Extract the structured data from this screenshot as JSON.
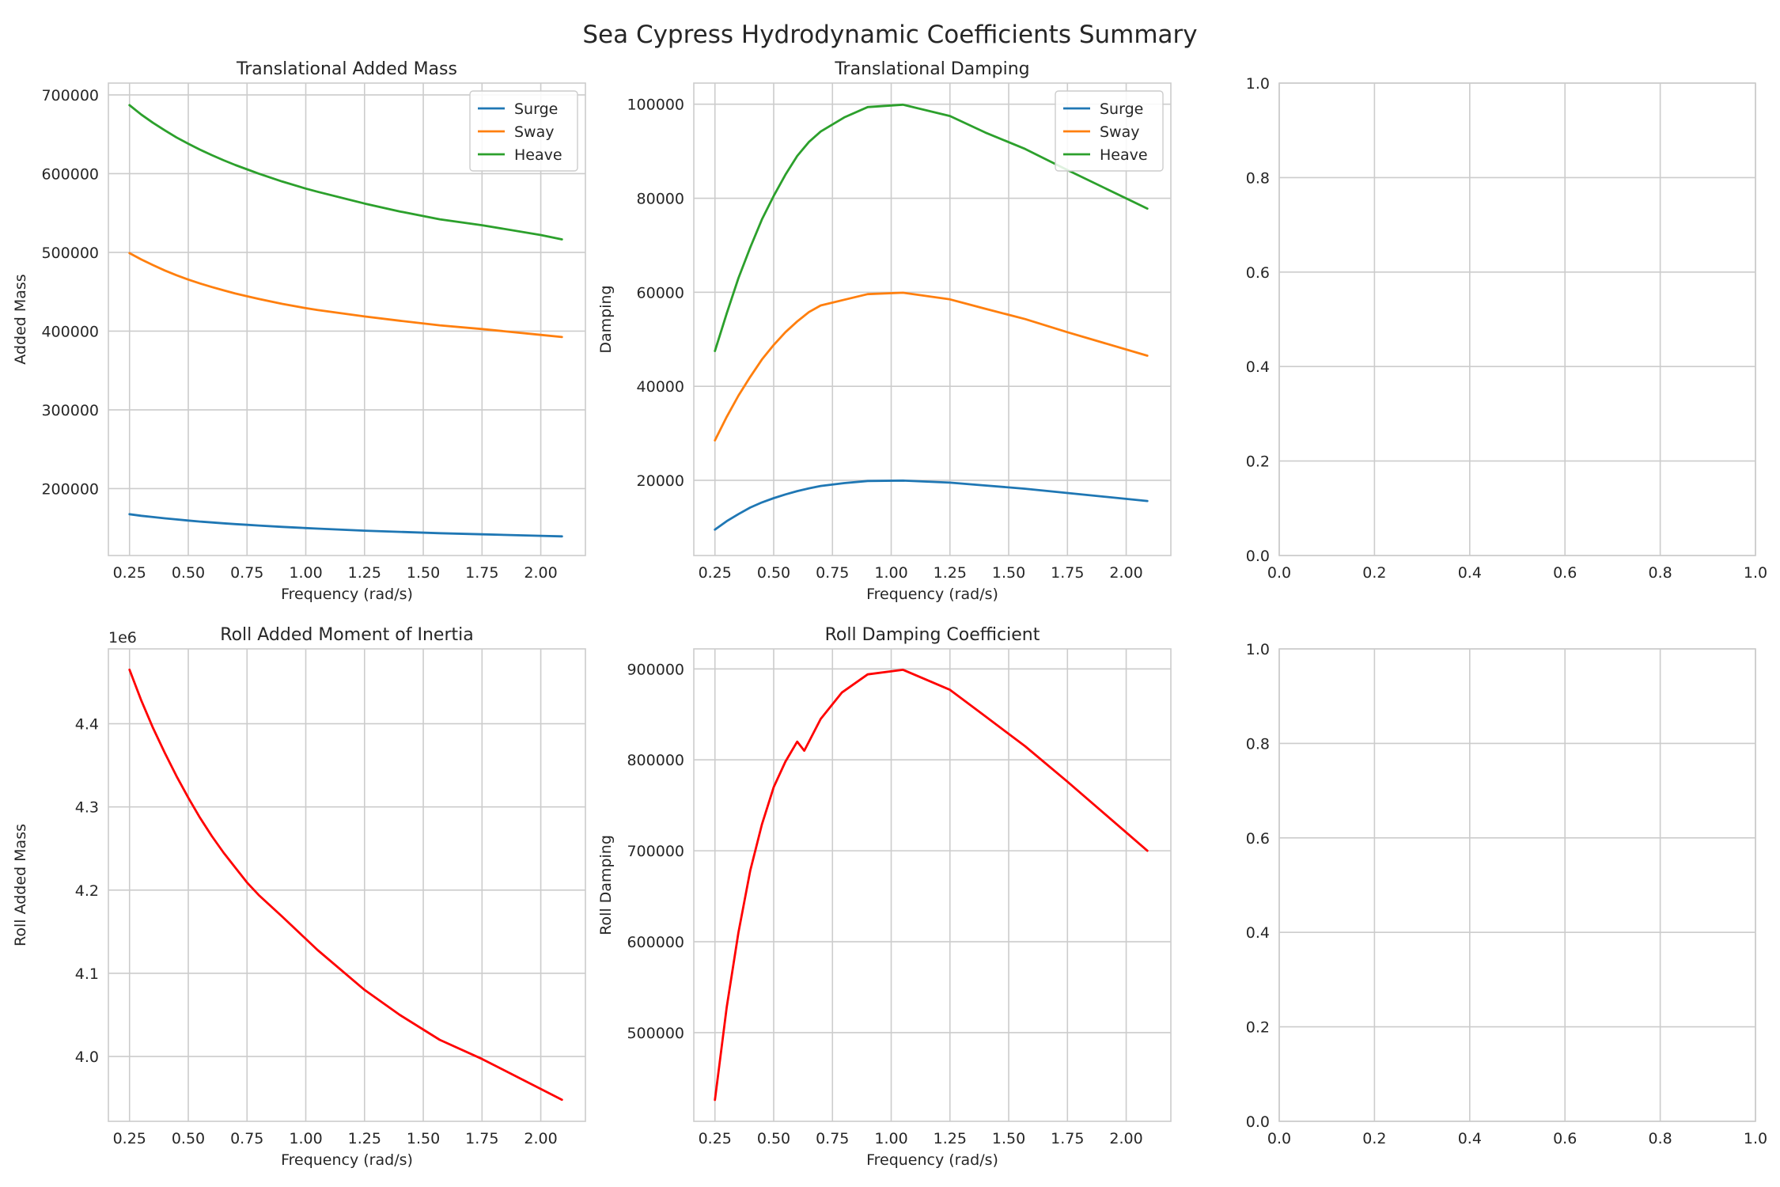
{
  "figure": {
    "title": "Sea Cypress Hydrodynamic Coefficients Summary"
  },
  "chart_data": [
    {
      "type": "line",
      "panel": "top-left",
      "title": "Translational Added Mass",
      "xlabel": "Frequency (rad/s)",
      "ylabel": "Added Mass",
      "xlim": [
        0.16,
        2.19
      ],
      "ylim": [
        115000,
        715000
      ],
      "xticks": [
        0.25,
        0.5,
        0.75,
        1.0,
        1.25,
        1.5,
        1.75,
        2.0
      ],
      "xtick_labels": [
        "0.25",
        "0.50",
        "0.75",
        "1.00",
        "1.25",
        "1.50",
        "1.75",
        "2.00"
      ],
      "yticks": [
        200000,
        300000,
        400000,
        500000,
        600000,
        700000
      ],
      "ytick_labels": [
        "200000",
        "300000",
        "400000",
        "500000",
        "600000",
        "700000"
      ],
      "grid": true,
      "legend": "top-right",
      "x": [
        0.25,
        0.3,
        0.35,
        0.4,
        0.45,
        0.5,
        0.55,
        0.6,
        0.65,
        0.7,
        0.75,
        0.8,
        0.9,
        1.0,
        1.05,
        1.25,
        1.4,
        1.57,
        1.75,
        2.0,
        2.09
      ],
      "series": [
        {
          "name": "Surge",
          "color": "#1f77b4",
          "values": [
            167500,
            165500,
            163800,
            162200,
            160800,
            159400,
            158100,
            157000,
            155900,
            154900,
            154000,
            153100,
            151400,
            149900,
            149200,
            146600,
            145000,
            143300,
            141900,
            140000,
            139300
          ]
        },
        {
          "name": "Sway",
          "color": "#ff7f0e",
          "values": [
            499000,
            491000,
            483800,
            477000,
            471000,
            465500,
            460500,
            456000,
            451800,
            447800,
            444200,
            440800,
            434600,
            429200,
            426800,
            418600,
            413200,
            407400,
            402600,
            395200,
            392500
          ]
        },
        {
          "name": "Heave",
          "color": "#2ca02c",
          "values": [
            687000,
            675000,
            664500,
            655000,
            646000,
            638000,
            630500,
            623500,
            617000,
            611000,
            605500,
            600000,
            590000,
            581000,
            577000,
            562000,
            552000,
            542000,
            534500,
            522000,
            516500
          ]
        }
      ]
    },
    {
      "type": "line",
      "panel": "top-middle",
      "title": "Translational Damping",
      "xlabel": "Frequency (rad/s)",
      "ylabel": "Damping",
      "xlim": [
        0.16,
        2.19
      ],
      "ylim": [
        4000,
        104500
      ],
      "xticks": [
        0.25,
        0.5,
        0.75,
        1.0,
        1.25,
        1.5,
        1.75,
        2.0
      ],
      "xtick_labels": [
        "0.25",
        "0.50",
        "0.75",
        "1.00",
        "1.25",
        "1.50",
        "1.75",
        "2.00"
      ],
      "yticks": [
        20000,
        40000,
        60000,
        80000,
        100000
      ],
      "ytick_labels": [
        "20000",
        "40000",
        "60000",
        "80000",
        "100000"
      ],
      "grid": true,
      "legend": "top-right",
      "x": [
        0.25,
        0.3,
        0.35,
        0.4,
        0.45,
        0.5,
        0.55,
        0.6,
        0.65,
        0.7,
        0.8,
        0.9,
        1.05,
        1.25,
        1.4,
        1.57,
        1.75,
        2.09
      ],
      "series": [
        {
          "name": "Surge",
          "color": "#1f77b4",
          "values": [
            9500,
            11300,
            12800,
            14200,
            15300,
            16200,
            17000,
            17700,
            18300,
            18800,
            19400,
            19850,
            19950,
            19500,
            18900,
            18200,
            17300,
            15600
          ]
        },
        {
          "name": "Sway",
          "color": "#ff7f0e",
          "values": [
            28500,
            33500,
            38000,
            42000,
            45700,
            48800,
            51500,
            53800,
            55800,
            57200,
            58400,
            59600,
            59900,
            58500,
            56500,
            54300,
            51500,
            46500
          ]
        },
        {
          "name": "Heave",
          "color": "#2ca02c",
          "values": [
            47500,
            55500,
            63000,
            69500,
            75500,
            80500,
            85000,
            89000,
            92000,
            94200,
            97200,
            99400,
            99900,
            97500,
            94000,
            90500,
            86000,
            77800
          ]
        }
      ]
    },
    {
      "type": "line",
      "panel": "bottom-left",
      "title": "Roll Added Moment of Inertia",
      "xlabel": "Frequency (rad/s)",
      "ylabel": "Roll Added Mass",
      "offset_text": "1e6",
      "xlim": [
        0.16,
        2.19
      ],
      "ylim": [
        3.922,
        4.49
      ],
      "xticks": [
        0.25,
        0.5,
        0.75,
        1.0,
        1.25,
        1.5,
        1.75,
        2.0
      ],
      "xtick_labels": [
        "0.25",
        "0.50",
        "0.75",
        "1.00",
        "1.25",
        "1.50",
        "1.75",
        "2.00"
      ],
      "yticks": [
        4.0,
        4.1,
        4.2,
        4.3,
        4.4
      ],
      "ytick_labels": [
        "4.0",
        "4.1",
        "4.2",
        "4.3",
        "4.4"
      ],
      "grid": true,
      "x": [
        0.25,
        0.3,
        0.35,
        0.4,
        0.45,
        0.5,
        0.55,
        0.6,
        0.65,
        0.7,
        0.75,
        0.8,
        0.9,
        1.05,
        1.25,
        1.4,
        1.57,
        1.75,
        2.09
      ],
      "series": [
        {
          "color": "#ff0000",
          "values": [
            4.465,
            4.428,
            4.395,
            4.365,
            4.337,
            4.311,
            4.287,
            4.265,
            4.245,
            4.227,
            4.209,
            4.194,
            4.168,
            4.128,
            4.08,
            4.05,
            4.02,
            3.997,
            3.948
          ]
        }
      ]
    },
    {
      "type": "line",
      "panel": "bottom-middle",
      "title": "Roll Damping Coefficient",
      "xlabel": "Frequency (rad/s)",
      "ylabel": "Roll Damping",
      "xlim": [
        0.16,
        2.19
      ],
      "ylim": [
        402500,
        922000
      ],
      "xticks": [
        0.25,
        0.5,
        0.75,
        1.0,
        1.25,
        1.5,
        1.75,
        2.0
      ],
      "xtick_labels": [
        "0.25",
        "0.50",
        "0.75",
        "1.00",
        "1.25",
        "1.50",
        "1.75",
        "2.00"
      ],
      "yticks": [
        500000,
        600000,
        700000,
        800000,
        900000
      ],
      "ytick_labels": [
        "500000",
        "600000",
        "700000",
        "800000",
        "900000"
      ],
      "grid": true,
      "x": [
        0.25,
        0.3,
        0.35,
        0.4,
        0.45,
        0.5,
        0.55,
        0.6,
        0.63,
        0.7,
        0.79,
        0.9,
        1.05,
        1.25,
        1.4,
        1.57,
        1.75,
        2.09
      ],
      "series": [
        {
          "color": "#ff0000",
          "values": [
            426000,
            528000,
            610000,
            678000,
            729000,
            770000,
            798000,
            820000,
            810000,
            845000,
            874000,
            894000,
            899000,
            877000,
            848000,
            815000,
            776000,
            700000
          ]
        }
      ]
    },
    {
      "type": "line",
      "panel": "top-right",
      "title": "",
      "xlim": [
        0.0,
        1.0
      ],
      "ylim": [
        0.0,
        1.0
      ],
      "xticks": [
        0.0,
        0.2,
        0.4,
        0.6,
        0.8,
        1.0
      ],
      "xtick_labels": [
        "0.0",
        "0.2",
        "0.4",
        "0.6",
        "0.8",
        "1.0"
      ],
      "yticks": [
        0.0,
        0.2,
        0.4,
        0.6,
        0.8,
        1.0
      ],
      "ytick_labels": [
        "0.0",
        "0.2",
        "0.4",
        "0.6",
        "0.8",
        "1.0"
      ],
      "grid": true,
      "series": []
    },
    {
      "type": "line",
      "panel": "bottom-right",
      "title": "",
      "xlim": [
        0.0,
        1.0
      ],
      "ylim": [
        0.0,
        1.0
      ],
      "xticks": [
        0.0,
        0.2,
        0.4,
        0.6,
        0.8,
        1.0
      ],
      "xtick_labels": [
        "0.0",
        "0.2",
        "0.4",
        "0.6",
        "0.8",
        "1.0"
      ],
      "yticks": [
        0.0,
        0.2,
        0.4,
        0.6,
        0.8,
        1.0
      ],
      "ytick_labels": [
        "0.0",
        "0.2",
        "0.4",
        "0.6",
        "0.8",
        "1.0"
      ],
      "grid": true,
      "series": []
    }
  ]
}
